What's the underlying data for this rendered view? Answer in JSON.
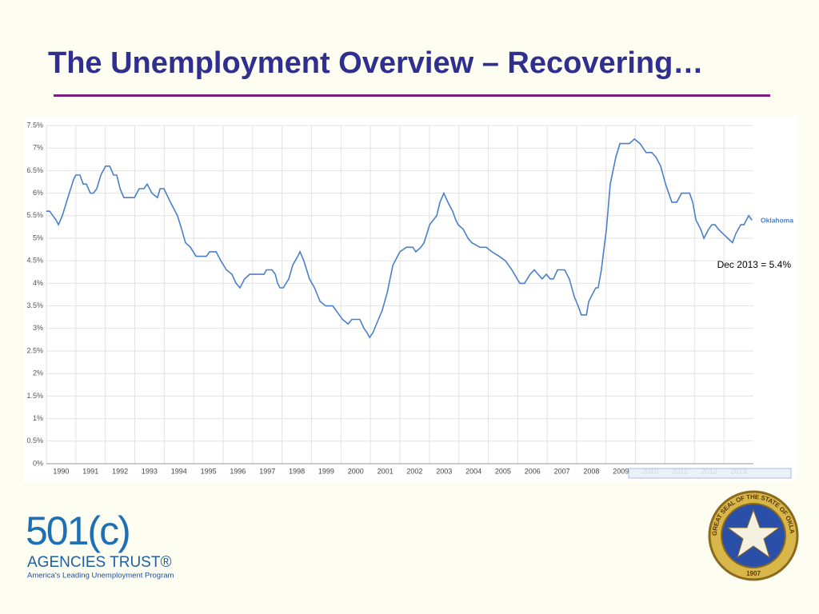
{
  "header": {
    "title": "The Unemployment Overview – Recovering…"
  },
  "chart_data": {
    "type": "line",
    "x": [
      1990.0,
      1990.11,
      1990.22,
      1990.33,
      1990.41,
      1990.54,
      1990.73,
      1990.92,
      1991.0,
      1991.14,
      1991.25,
      1991.36,
      1991.49,
      1991.6,
      1991.71,
      1991.85,
      1992.01,
      1992.15,
      1992.28,
      1992.39,
      1992.5,
      1992.63,
      1992.77,
      1992.99,
      1993.15,
      1993.31,
      1993.42,
      1993.58,
      1993.77,
      1993.86,
      1993.99,
      1994.21,
      1994.45,
      1994.59,
      1994.72,
      1994.89,
      1995.08,
      1995.43,
      1995.54,
      1995.76,
      1995.92,
      1996.11,
      1996.3,
      1996.44,
      1996.57,
      1996.73,
      1996.9,
      1997.39,
      1997.47,
      1997.66,
      1997.77,
      1997.85,
      1997.93,
      1998.04,
      1998.23,
      1998.36,
      1998.53,
      1998.61,
      1998.74,
      1998.93,
      1999.1,
      1999.29,
      1999.48,
      1999.72,
      1999.83,
      2000.05,
      2000.24,
      2000.37,
      2000.64,
      2000.78,
      2000.89,
      2000.97,
      2001.08,
      2001.27,
      2001.4,
      2001.57,
      2001.76,
      2002.0,
      2002.22,
      2002.44,
      2002.54,
      2002.71,
      2002.82,
      2003.01,
      2003.25,
      2003.36,
      2003.49,
      2003.63,
      2003.79,
      2003.9,
      2003.98,
      2004.15,
      2004.31,
      2004.44,
      2004.72,
      2004.93,
      2005.12,
      2005.37,
      2005.58,
      2005.8,
      2006.07,
      2006.23,
      2006.42,
      2006.56,
      2006.69,
      2006.83,
      2006.97,
      2007.1,
      2007.21,
      2007.35,
      2007.59,
      2007.75,
      2007.92,
      2008.05,
      2008.16,
      2008.33,
      2008.41,
      2008.65,
      2008.73,
      2008.84,
      2009.01,
      2009.14,
      2009.33,
      2009.47,
      2009.79,
      2009.96,
      2010.15,
      2010.36,
      2010.55,
      2010.69,
      2010.85,
      2011.02,
      2011.23,
      2011.4,
      2011.56,
      2011.83,
      2011.94,
      2012.05,
      2012.21,
      2012.32,
      2012.48,
      2012.59,
      2012.7,
      2012.81,
      2012.97,
      2013.13,
      2013.29,
      2013.4,
      2013.57,
      2013.68,
      2013.84,
      2013.95
    ],
    "series": [
      {
        "name": "Oklahoma",
        "color": "#4a7fcb",
        "values": [
          5.6,
          5.6,
          5.5,
          5.4,
          5.3,
          5.5,
          5.9,
          6.3,
          6.4,
          6.4,
          6.2,
          6.2,
          6.0,
          6.0,
          6.1,
          6.4,
          6.6,
          6.6,
          6.4,
          6.4,
          6.1,
          5.9,
          5.9,
          5.9,
          6.1,
          6.1,
          6.2,
          6.0,
          5.9,
          6.1,
          6.1,
          5.8,
          5.5,
          5.2,
          4.9,
          4.8,
          4.6,
          4.6,
          4.7,
          4.7,
          4.5,
          4.3,
          4.2,
          4.0,
          3.9,
          4.1,
          4.2,
          4.2,
          4.3,
          4.3,
          4.2,
          4.0,
          3.9,
          3.9,
          4.1,
          4.4,
          4.6,
          4.7,
          4.5,
          4.1,
          3.9,
          3.6,
          3.5,
          3.5,
          3.4,
          3.2,
          3.1,
          3.2,
          3.2,
          3.0,
          2.9,
          2.8,
          2.9,
          3.2,
          3.4,
          3.8,
          4.4,
          4.7,
          4.8,
          4.8,
          4.7,
          4.8,
          4.9,
          5.3,
          5.5,
          5.8,
          6.0,
          5.8,
          5.6,
          5.4,
          5.3,
          5.2,
          5.0,
          4.9,
          4.8,
          4.8,
          4.7,
          4.6,
          4.5,
          4.3,
          4.0,
          4.0,
          4.2,
          4.3,
          4.2,
          4.1,
          4.2,
          4.1,
          4.1,
          4.3,
          4.3,
          4.1,
          3.7,
          3.5,
          3.3,
          3.3,
          3.6,
          3.9,
          3.9,
          4.3,
          5.2,
          6.2,
          6.8,
          7.1,
          7.1,
          7.2,
          7.1,
          6.9,
          6.9,
          6.8,
          6.6,
          6.2,
          5.8,
          5.8,
          6.0,
          6.0,
          5.8,
          5.4,
          5.2,
          5.0,
          5.2,
          5.3,
          5.3,
          5.2,
          5.1,
          5.0,
          4.9,
          5.1,
          5.3,
          5.3,
          5.5,
          5.4
        ]
      }
    ],
    "xlim": [
      1990,
      2014
    ],
    "xticks": [
      1990,
      1991,
      1992,
      1993,
      1994,
      1995,
      1996,
      1997,
      1998,
      1999,
      2000,
      2001,
      2002,
      2003,
      2004,
      2005,
      2006,
      2007,
      2008,
      2009,
      2010,
      2011,
      2012,
      2013
    ],
    "ylim": [
      0,
      7.5
    ],
    "yticks": [
      {
        "value": 0,
        "label": "0%"
      },
      {
        "value": 0.5,
        "label": "0.5%"
      },
      {
        "value": 1,
        "label": "1%"
      },
      {
        "value": 1.5,
        "label": "1.5%"
      },
      {
        "value": 2,
        "label": "2%"
      },
      {
        "value": 2.5,
        "label": "2.5%"
      },
      {
        "value": 3,
        "label": "3%"
      },
      {
        "value": 3.5,
        "label": "3.5%"
      },
      {
        "value": 4,
        "label": "4%"
      },
      {
        "value": 4.5,
        "label": "4.5%"
      },
      {
        "value": 5,
        "label": "5%"
      },
      {
        "value": 5.5,
        "label": "5.5%"
      },
      {
        "value": 6,
        "label": "6%"
      },
      {
        "value": 6.5,
        "label": "6.5%"
      },
      {
        "value": 7,
        "label": "7%"
      },
      {
        "value": 7.5,
        "label": "7.5%"
      }
    ],
    "grid": true,
    "annotation": "Dec 2013 = 5.4%"
  },
  "logos": {
    "org_mark": "501(c)",
    "org_name": "AGENCIES TRUST®",
    "org_tagline": "America's Leading Unemployment Program",
    "seal_text": "GREAT SEAL OF THE STATE OF OKLAHOMA",
    "seal_year": "1907"
  }
}
